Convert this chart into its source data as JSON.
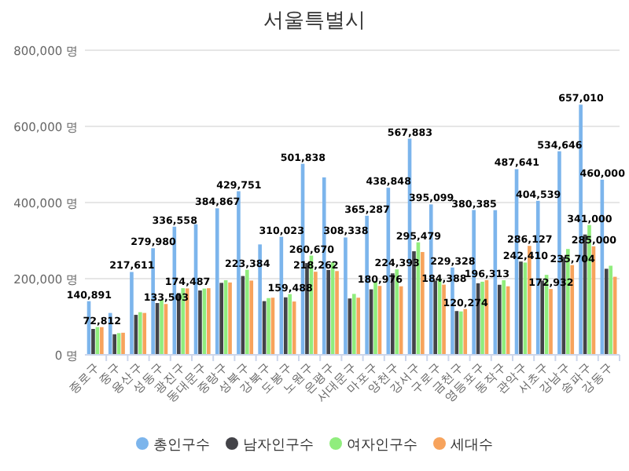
{
  "chart_data": {
    "type": "bar",
    "title": "서울특별시",
    "categories": [
      "종로구",
      "중구",
      "용산구",
      "성동구",
      "광진구",
      "동대문구",
      "중랑구",
      "성북구",
      "강북구",
      "도봉구",
      "노원구",
      "은평구",
      "서대문구",
      "마포구",
      "양천구",
      "강서구",
      "구로구",
      "금천구",
      "영등포구",
      "동작구",
      "관악구",
      "서초구",
      "강남구",
      "송파구",
      "강동구"
    ],
    "series": [
      {
        "name": "총인구수",
        "color": "#7cb5ec",
        "values": [
          140891,
          110000,
          217611,
          279980,
          336558,
          343000,
          384867,
          429751,
          290000,
          310023,
          501838,
          466000,
          308338,
          365287,
          438848,
          567883,
          395099,
          229328,
          380385,
          380000,
          487641,
          404539,
          534646,
          657010,
          460000
        ],
        "value_labels": [
          "140,891",
          null,
          "217,611",
          "279,980",
          "336,558",
          null,
          "384,867",
          "429,751",
          null,
          "310,023",
          "501,838",
          null,
          "308,338",
          "365,287",
          "438,848",
          "567,883",
          "395,099",
          "229,328",
          "380,385",
          null,
          "487,641",
          "404,539",
          "534,646",
          "657,010",
          "460,000"
        ]
      },
      {
        "name": "남자인구수",
        "color": "#434348",
        "values": [
          68000,
          54000,
          105000,
          136000,
          162000,
          169000,
          189000,
          207000,
          141000,
          151000,
          241000,
          223000,
          148000,
          172000,
          214000,
          272000,
          195000,
          115000,
          188000,
          184000,
          245000,
          195000,
          257000,
          316000,
          226000
        ]
      },
      {
        "name": "여자인구수",
        "color": "#90ed7d",
        "values": [
          73000,
          57000,
          112000,
          144000,
          175000,
          174000,
          196000,
          223384,
          149000,
          159488,
          260670,
          243000,
          160000,
          193000,
          224393,
          295479,
          200000,
          114000,
          192000,
          196000,
          242410,
          210000,
          278000,
          341000,
          234000
        ],
        "value_labels": [
          null,
          null,
          null,
          null,
          null,
          null,
          null,
          "223,384",
          null,
          "159,488",
          "260,670",
          null,
          null,
          null,
          "224,393",
          "295,479",
          null,
          null,
          null,
          null,
          "242,410",
          null,
          null,
          "341,000",
          null
        ]
      },
      {
        "name": "세대수",
        "color": "#f7a35c",
        "values": [
          72812,
          58000,
          110000,
          133503,
          174487,
          175000,
          190000,
          195000,
          150000,
          140000,
          218262,
          220000,
          150000,
          180976,
          180000,
          270000,
          184388,
          120274,
          196313,
          180000,
          286127,
          172932,
          235704,
          285000,
          205000
        ],
        "value_labels": [
          "72,812",
          null,
          null,
          "133,503",
          "174,487",
          null,
          null,
          null,
          null,
          null,
          "218,262",
          null,
          null,
          "180,976",
          null,
          null,
          "184,388",
          "120,274",
          "196,313",
          null,
          "286,127",
          "172,932",
          "235,704",
          "285,000",
          null
        ]
      }
    ],
    "ylim": [
      0,
      800000
    ],
    "yticks": [
      {
        "value": 0,
        "label": "0 명"
      },
      {
        "value": 200000,
        "label": "200,000 명"
      },
      {
        "value": 400000,
        "label": "400,000 명"
      },
      {
        "value": 600000,
        "label": "600,000 명"
      },
      {
        "value": 800000,
        "label": "800,000 명"
      }
    ],
    "grid": "y",
    "legend": "bottom"
  }
}
